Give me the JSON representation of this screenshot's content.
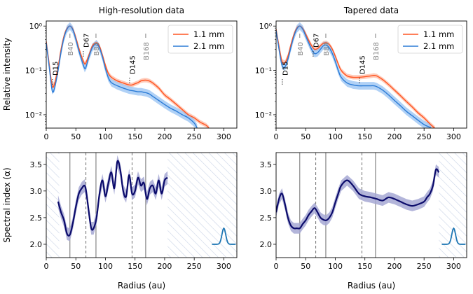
{
  "titles": {
    "left": "High-resolution data",
    "right": "Tapered data"
  },
  "axes": {
    "ylabel_top": "Relative intensity",
    "ylabel_bottom": "Spectral index (α)",
    "xlabel": "Radius (au)",
    "x_ticks": [
      0,
      50,
      100,
      150,
      200,
      250,
      300
    ],
    "xlim": [
      0,
      322
    ],
    "top_y_ticks": [
      "10⁻²",
      "10⁻¹",
      "10⁰"
    ],
    "top_ylim_log": [
      0.005,
      1.3
    ],
    "bottom_y_ticks": [
      2.0,
      2.5,
      3.0,
      3.5
    ],
    "bottom_ylim": [
      1.75,
      3.72
    ]
  },
  "legend": {
    "entries": [
      {
        "label": "1.1 mm",
        "color": "#ff5522"
      },
      {
        "label": "2.1 mm",
        "color": "#2b7bd6"
      }
    ]
  },
  "colors": {
    "red": "#ff5522",
    "blue": "#2b7bd6",
    "blue_band": "#8fbdf2",
    "red_band": "#ffb39a",
    "navy": "#0b0b6b",
    "alpha_band": "#a6a8d3",
    "hatch": "#c9d3e6",
    "beam": "#1f77b4"
  },
  "chart_data": [
    {
      "type": "line",
      "panel": "top-left",
      "title": "High-resolution data",
      "ylabel": "Relative intensity",
      "yscale": "log",
      "ylim": [
        0.005,
        1.3
      ],
      "xlim": [
        0,
        322
      ],
      "series": [
        {
          "name": "1.1 mm",
          "x": [
            0,
            5,
            10,
            14,
            20,
            25,
            30,
            35,
            40,
            45,
            50,
            55,
            60,
            65,
            68,
            72,
            78,
            85,
            90,
            95,
            100,
            105,
            110,
            120,
            130,
            140,
            145,
            150,
            155,
            160,
            165,
            170,
            175,
            180,
            190,
            200,
            210,
            220,
            230,
            240,
            250,
            260,
            270,
            275
          ],
          "y": [
            0.45,
            0.14,
            0.045,
            0.05,
            0.12,
            0.3,
            0.6,
            0.88,
            1.0,
            0.85,
            0.55,
            0.32,
            0.2,
            0.14,
            0.16,
            0.22,
            0.36,
            0.42,
            0.35,
            0.22,
            0.13,
            0.085,
            0.07,
            0.058,
            0.052,
            0.047,
            0.047,
            0.05,
            0.053,
            0.058,
            0.06,
            0.06,
            0.057,
            0.052,
            0.04,
            0.028,
            0.022,
            0.017,
            0.013,
            0.01,
            0.0085,
            0.0068,
            0.0058,
            0.005
          ]
        },
        {
          "name": "2.1 mm",
          "x": [
            0,
            5,
            10,
            14,
            20,
            25,
            30,
            35,
            40,
            45,
            50,
            55,
            60,
            65,
            68,
            72,
            78,
            85,
            90,
            95,
            100,
            105,
            110,
            120,
            130,
            140,
            145,
            150,
            155,
            160,
            165,
            170,
            175,
            180,
            190,
            200,
            210,
            220,
            230,
            240,
            250,
            255
          ],
          "y": [
            0.42,
            0.12,
            0.035,
            0.04,
            0.1,
            0.26,
            0.55,
            0.85,
            1.0,
            0.82,
            0.5,
            0.28,
            0.17,
            0.11,
            0.13,
            0.2,
            0.33,
            0.4,
            0.32,
            0.2,
            0.11,
            0.068,
            0.053,
            0.045,
            0.04,
            0.036,
            0.035,
            0.034,
            0.033,
            0.033,
            0.032,
            0.031,
            0.029,
            0.026,
            0.021,
            0.017,
            0.014,
            0.012,
            0.01,
            0.0085,
            0.0065,
            0.005
          ]
        }
      ],
      "annotations": [
        {
          "label": "D15",
          "x": 15,
          "gap": true
        },
        {
          "label": "B40",
          "x": 40,
          "ring": true
        },
        {
          "label": "D67",
          "x": 67,
          "gap": true
        },
        {
          "label": "B84",
          "x": 84,
          "ring": true
        },
        {
          "label": "D145",
          "x": 145,
          "gap": true
        },
        {
          "label": "B168",
          "x": 168,
          "ring": true
        }
      ]
    },
    {
      "type": "line",
      "panel": "top-right",
      "title": "Tapered data",
      "yscale": "log",
      "ylim": [
        0.005,
        1.3
      ],
      "xlim": [
        0,
        322
      ],
      "series": [
        {
          "name": "1.1 mm",
          "x": [
            0,
            5,
            10,
            15,
            20,
            25,
            30,
            35,
            40,
            45,
            50,
            55,
            60,
            65,
            70,
            75,
            80,
            85,
            90,
            95,
            100,
            105,
            110,
            120,
            130,
            140,
            150,
            160,
            165,
            170,
            180,
            190,
            200,
            210,
            220,
            230,
            240,
            250,
            260,
            268
          ],
          "y": [
            0.85,
            0.35,
            0.16,
            0.15,
            0.21,
            0.38,
            0.64,
            0.9,
            1.0,
            0.88,
            0.66,
            0.48,
            0.36,
            0.3,
            0.31,
            0.36,
            0.41,
            0.42,
            0.38,
            0.3,
            0.21,
            0.14,
            0.1,
            0.075,
            0.07,
            0.07,
            0.072,
            0.075,
            0.077,
            0.075,
            0.062,
            0.048,
            0.036,
            0.027,
            0.02,
            0.015,
            0.011,
            0.0085,
            0.0062,
            0.005
          ]
        },
        {
          "name": "2.1 mm",
          "x": [
            0,
            5,
            10,
            15,
            20,
            25,
            30,
            35,
            40,
            45,
            50,
            55,
            60,
            65,
            70,
            75,
            80,
            85,
            90,
            95,
            100,
            105,
            110,
            120,
            130,
            140,
            150,
            160,
            165,
            170,
            180,
            190,
            200,
            210,
            220,
            230,
            240,
            250,
            260,
            262
          ],
          "y": [
            0.8,
            0.3,
            0.13,
            0.12,
            0.18,
            0.33,
            0.58,
            0.86,
            1.0,
            0.85,
            0.6,
            0.42,
            0.3,
            0.24,
            0.25,
            0.3,
            0.36,
            0.37,
            0.32,
            0.24,
            0.16,
            0.1,
            0.07,
            0.052,
            0.047,
            0.045,
            0.045,
            0.045,
            0.045,
            0.043,
            0.036,
            0.028,
            0.021,
            0.016,
            0.012,
            0.0095,
            0.0075,
            0.006,
            0.0052,
            0.005
          ]
        }
      ],
      "annotations": [
        {
          "label": "D15",
          "x": 15,
          "gap": true
        },
        {
          "label": "B40",
          "x": 40,
          "ring": true
        },
        {
          "label": "D67",
          "x": 67,
          "gap": true
        },
        {
          "label": "B84",
          "x": 84,
          "ring": true
        },
        {
          "label": "D145",
          "x": 145,
          "gap": true
        },
        {
          "label": "B168",
          "x": 168,
          "ring": true
        }
      ]
    },
    {
      "type": "line",
      "panel": "bottom-left",
      "ylabel": "Spectral index (α)",
      "xlabel": "Radius (au)",
      "ylim": [
        1.75,
        3.72
      ],
      "xlim": [
        0,
        322
      ],
      "hatched_ranges": [
        [
          0,
          22
        ],
        [
          205,
          322
        ]
      ],
      "ring_lines": [
        40,
        84,
        168
      ],
      "gap_lines": [
        67,
        145
      ],
      "series": [
        {
          "name": "alpha",
          "x": [
            20,
            25,
            30,
            35,
            40,
            45,
            50,
            55,
            60,
            65,
            68,
            72,
            76,
            80,
            85,
            90,
            95,
            100,
            105,
            110,
            115,
            120,
            125,
            130,
            135,
            140,
            145,
            150,
            155,
            160,
            165,
            170,
            175,
            180,
            185,
            190,
            195,
            200,
            205
          ],
          "y": [
            2.8,
            2.6,
            2.45,
            2.2,
            2.18,
            2.4,
            2.7,
            2.95,
            3.05,
            3.1,
            2.95,
            2.6,
            2.3,
            2.3,
            2.5,
            2.95,
            3.2,
            2.9,
            3.15,
            3.35,
            3.05,
            3.55,
            3.4,
            3.0,
            2.9,
            3.3,
            2.95,
            3.0,
            3.25,
            3.1,
            3.15,
            2.85,
            3.05,
            3.1,
            2.95,
            3.2,
            2.95,
            3.2,
            3.25
          ],
          "band": 0.12
        }
      ],
      "beam": {
        "center": 300,
        "height": 0.3,
        "base": 2.0
      }
    },
    {
      "type": "line",
      "panel": "bottom-right",
      "xlabel": "Radius (au)",
      "ylim": [
        1.75,
        3.72
      ],
      "xlim": [
        0,
        322
      ],
      "hatched_ranges": [
        [
          275,
          322
        ]
      ],
      "ring_lines": [
        40,
        84,
        168
      ],
      "gap_lines": [
        67,
        145
      ],
      "series": [
        {
          "name": "alpha",
          "x": [
            0,
            5,
            10,
            15,
            20,
            25,
            30,
            35,
            40,
            45,
            50,
            55,
            60,
            65,
            70,
            75,
            80,
            85,
            90,
            95,
            100,
            105,
            110,
            120,
            130,
            140,
            150,
            160,
            170,
            180,
            190,
            200,
            210,
            220,
            230,
            240,
            250,
            255,
            260,
            265,
            270,
            275
          ],
          "y": [
            2.6,
            2.85,
            2.95,
            2.75,
            2.5,
            2.35,
            2.3,
            2.3,
            2.3,
            2.38,
            2.45,
            2.55,
            2.62,
            2.68,
            2.6,
            2.5,
            2.46,
            2.45,
            2.5,
            2.6,
            2.78,
            2.95,
            3.1,
            3.2,
            3.1,
            2.95,
            2.9,
            2.88,
            2.85,
            2.82,
            2.88,
            2.85,
            2.8,
            2.75,
            2.72,
            2.75,
            2.8,
            2.88,
            2.95,
            3.1,
            3.4,
            3.35
          ],
          "band": 0.1
        }
      ],
      "beam": {
        "center": 300,
        "height": 0.3,
        "base": 2.0
      }
    }
  ]
}
